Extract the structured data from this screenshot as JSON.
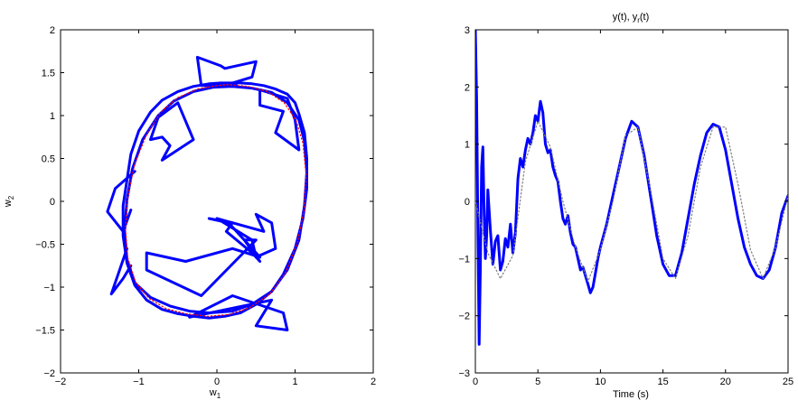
{
  "chart_data": [
    {
      "type": "line",
      "title": "",
      "xlabel": "w_1",
      "ylabel": "w_2",
      "xlim": [
        -2,
        2
      ],
      "ylim": [
        -2,
        2
      ],
      "xticks": [
        "−2",
        "−1",
        "0",
        "1",
        "2"
      ],
      "yticks": [
        "2",
        "1.5",
        "1",
        "0.5",
        "0",
        "−0.5",
        "−1",
        "−1.5",
        "−2"
      ],
      "grid": false,
      "series": [
        {
          "style": "solid",
          "color": "#0000ff",
          "x": [
            0.05,
            -0.1,
            -0.3,
            -0.5,
            -0.7,
            -0.85,
            -1.0,
            -1.1,
            -1.15,
            -1.2,
            -1.2,
            -1.15,
            -1.05,
            -0.9,
            -0.7,
            -0.5,
            -0.3,
            -0.1,
            0.1,
            0.3,
            0.5,
            0.7,
            0.85,
            1.0,
            1.1,
            1.15,
            1.15,
            1.12,
            1.05,
            1.0,
            0.9,
            0.75,
            0.6,
            0.45,
            0.3,
            0.15,
            0.05
          ],
          "y": [
            1.38,
            1.37,
            1.34,
            1.28,
            1.18,
            1.04,
            0.82,
            0.55,
            0.25,
            -0.05,
            -0.4,
            -0.72,
            -0.98,
            -1.15,
            -1.26,
            -1.31,
            -1.34,
            -1.36,
            -1.34,
            -1.3,
            -1.2,
            -1.05,
            -0.85,
            -0.55,
            -0.2,
            0.15,
            0.5,
            0.8,
            1.02,
            1.15,
            1.25,
            1.31,
            1.35,
            1.37,
            1.38,
            1.38,
            1.38
          ]
        },
        {
          "style": "solid",
          "color": "#0000ff",
          "x": [
            -0.05,
            -0.3,
            -0.55,
            -0.75,
            -0.95,
            -1.08,
            -1.15,
            -1.18,
            -1.15,
            -1.05,
            -0.85,
            -0.6,
            -0.35,
            -0.1,
            0.2,
            0.45,
            0.7,
            0.9,
            1.05,
            1.12,
            1.15,
            1.12,
            1.05,
            0.9,
            0.7,
            0.45,
            0.2,
            -0.05
          ],
          "y": [
            1.33,
            1.28,
            1.17,
            1.0,
            0.72,
            0.38,
            0.02,
            -0.35,
            -0.68,
            -0.95,
            -1.12,
            -1.22,
            -1.28,
            -1.3,
            -1.28,
            -1.2,
            -1.05,
            -0.8,
            -0.45,
            -0.05,
            0.35,
            0.7,
            0.95,
            1.15,
            1.27,
            1.32,
            1.34,
            1.33
          ]
        },
        {
          "style": "solid",
          "color": "#0000ff",
          "x": [
            -0.2,
            -0.25,
            0.05,
            0.1,
            0.5,
            0.45,
            0.2,
            0.25,
            -0.2
          ],
          "y": [
            1.35,
            1.68,
            1.58,
            1.55,
            1.63,
            1.45,
            1.38,
            1.35,
            1.35
          ]
        },
        {
          "style": "solid",
          "color": "#0000ff",
          "x": [
            -0.75,
            -0.85,
            -0.7,
            -0.6,
            -0.7,
            -0.3,
            -0.5,
            -0.75
          ],
          "y": [
            0.98,
            0.72,
            0.75,
            0.65,
            0.48,
            0.72,
            1.15,
            0.98
          ]
        },
        {
          "style": "solid",
          "color": "#0000ff",
          "x": [
            -1.05,
            -1.3,
            -1.4,
            -1.2,
            -1.1
          ],
          "y": [
            0.35,
            0.15,
            -0.12,
            -0.35,
            -0.1
          ]
        },
        {
          "style": "solid",
          "color": "#0000ff",
          "x": [
            -1.15,
            -1.35,
            -1.2,
            -1.1
          ],
          "y": [
            -0.55,
            -1.08,
            -0.9,
            -0.75
          ]
        },
        {
          "style": "solid",
          "color": "#0000ff",
          "x": [
            -0.1,
            0.2,
            0.12,
            0.45,
            0.55,
            0.35,
            0.5,
            -0.2,
            -0.9,
            -0.9,
            -0.4,
            0.2,
            0.55,
            0.15,
            -0.1
          ],
          "y": [
            -0.2,
            -0.25,
            -0.35,
            -0.6,
            -0.7,
            -0.45,
            -0.45,
            -1.1,
            -0.8,
            -0.6,
            -0.7,
            -0.55,
            -0.65,
            -0.25,
            -0.2
          ]
        },
        {
          "style": "solid",
          "color": "#0000ff",
          "x": [
            0.0,
            0.6,
            0.5,
            0.7,
            0.75,
            0.5,
            0.45,
            0.0
          ],
          "y": [
            -0.2,
            -0.35,
            -0.15,
            -0.25,
            -0.55,
            -0.65,
            -0.45,
            -0.2
          ]
        },
        {
          "style": "solid",
          "color": "#0000ff",
          "x": [
            -0.35,
            0.7,
            0.5,
            0.9,
            0.85,
            0.2,
            -0.35
          ],
          "y": [
            -1.35,
            -1.15,
            -1.45,
            -1.5,
            -1.3,
            -1.1,
            -1.35
          ]
        },
        {
          "style": "solid",
          "color": "#0000ff",
          "x": [
            0.55,
            0.55,
            0.85,
            0.75,
            1.05,
            1.0,
            0.9,
            0.55
          ],
          "y": [
            1.3,
            1.12,
            1.05,
            0.8,
            0.6,
            0.95,
            1.2,
            1.3
          ]
        },
        {
          "style": "dotted",
          "color": "#ff0000",
          "x": [
            0.0,
            -0.25,
            -0.5,
            -0.72,
            -0.9,
            -1.05,
            -1.14,
            -1.17,
            -1.14,
            -1.04,
            -0.87,
            -0.65,
            -0.4,
            -0.12,
            0.15,
            0.42,
            0.68,
            0.88,
            1.03,
            1.12,
            1.14,
            1.1,
            1.01,
            0.86,
            0.65,
            0.4,
            0.15,
            0.0
          ],
          "y": [
            1.35,
            1.31,
            1.21,
            1.04,
            0.78,
            0.44,
            0.06,
            -0.32,
            -0.66,
            -0.94,
            -1.13,
            -1.25,
            -1.31,
            -1.34,
            -1.32,
            -1.24,
            -1.08,
            -0.83,
            -0.48,
            -0.08,
            0.32,
            0.68,
            0.95,
            1.15,
            1.28,
            1.34,
            1.36,
            1.35
          ]
        }
      ]
    },
    {
      "type": "line",
      "title": "y(t), y_r(t)",
      "xlabel": "Time (s)",
      "ylabel": "",
      "xlim": [
        0,
        25
      ],
      "ylim": [
        -3,
        3
      ],
      "xticks": [
        "0",
        "5",
        "10",
        "15",
        "20",
        "25"
      ],
      "yticks": [
        "3",
        "2",
        "1",
        "0",
        "−1",
        "−2",
        "−3"
      ],
      "grid": false,
      "series": [
        {
          "style": "solid",
          "color": "#0000ff",
          "x": [
            0.0,
            0.1,
            0.2,
            0.3,
            0.4,
            0.5,
            0.6,
            0.7,
            0.8,
            0.9,
            1.0,
            1.2,
            1.4,
            1.6,
            1.8,
            2.0,
            2.2,
            2.4,
            2.6,
            2.8,
            3.0,
            3.2,
            3.4,
            3.6,
            3.8,
            4.0,
            4.2,
            4.4,
            4.6,
            4.8,
            5.0,
            5.2,
            5.4,
            5.6,
            5.8,
            6.0,
            6.2,
            6.4,
            6.6,
            6.8,
            7.0,
            7.2,
            7.4,
            7.6,
            7.8,
            8.0,
            8.2,
            8.4,
            8.6,
            8.8,
            9.0,
            9.2,
            9.4,
            9.6,
            9.8,
            10.0,
            10.5,
            11.0,
            11.5,
            12.0,
            12.5,
            13.0,
            13.5,
            14.0,
            14.5,
            15.0,
            15.5,
            16.0,
            16.5,
            17.0,
            17.5,
            18.0,
            18.5,
            19.0,
            19.5,
            20.0,
            20.5,
            21.0,
            21.5,
            22.0,
            22.5,
            23.0,
            23.5,
            24.0,
            24.5,
            25.0
          ],
          "y": [
            3.0,
            1.8,
            -0.5,
            -2.5,
            -1.2,
            0.6,
            0.95,
            -0.2,
            -1.0,
            -0.6,
            0.2,
            -0.5,
            -1.1,
            -0.7,
            -0.6,
            -1.2,
            -1.05,
            -0.65,
            -0.8,
            -0.4,
            -0.9,
            -0.55,
            0.4,
            0.75,
            0.6,
            0.9,
            1.1,
            1.0,
            1.2,
            1.5,
            1.4,
            1.75,
            1.55,
            1.0,
            0.85,
            0.9,
            0.6,
            0.45,
            0.35,
            0.0,
            -0.3,
            -0.4,
            -0.25,
            -0.55,
            -0.75,
            -0.8,
            -1.0,
            -1.2,
            -1.15,
            -1.3,
            -1.45,
            -1.6,
            -1.5,
            -1.25,
            -1.0,
            -0.8,
            -0.4,
            0.1,
            0.6,
            1.1,
            1.4,
            1.3,
            0.8,
            0.1,
            -0.6,
            -1.1,
            -1.3,
            -1.3,
            -0.9,
            -0.3,
            0.3,
            0.8,
            1.2,
            1.35,
            1.3,
            0.9,
            0.3,
            -0.3,
            -0.8,
            -1.1,
            -1.3,
            -1.35,
            -1.2,
            -0.8,
            -0.2,
            0.1
          ]
        },
        {
          "style": "dotted",
          "color": "#7f7f7f",
          "x": [
            0.0,
            1.0,
            2.0,
            3.0,
            4.0,
            5.0,
            6.0,
            7.0,
            8.0,
            9.0,
            10.0,
            11.0,
            12.0,
            13.0,
            14.0,
            15.0,
            16.0,
            17.0,
            18.0,
            19.0,
            20.0,
            21.0,
            22.0,
            23.0,
            24.0,
            25.0
          ],
          "y": [
            0.0,
            -0.9,
            -1.35,
            -0.95,
            0.7,
            1.4,
            0.95,
            0.0,
            -0.8,
            -1.4,
            -0.85,
            0.0,
            1.15,
            1.3,
            0.2,
            -1.0,
            -1.35,
            -0.6,
            0.6,
            1.3,
            1.3,
            0.3,
            -0.85,
            -1.35,
            -0.8,
            0.1
          ]
        }
      ]
    }
  ]
}
